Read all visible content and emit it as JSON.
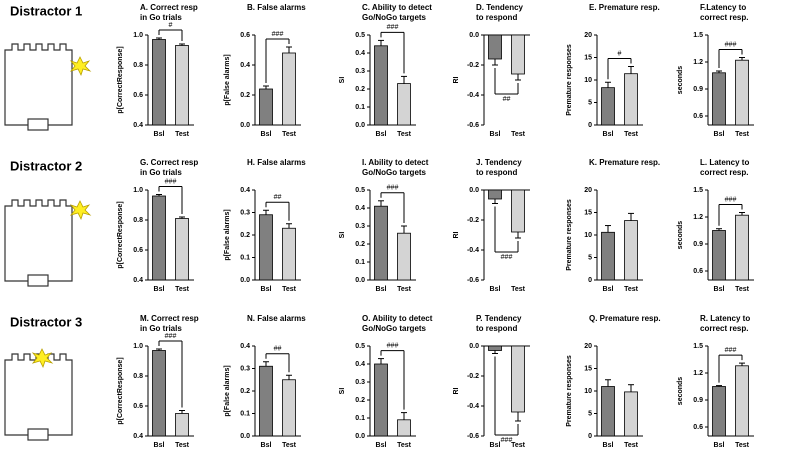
{
  "rows": [
    "Distractor 1",
    "Distractor 2",
    "Distractor 3"
  ],
  "chart_data": [
    {
      "type": "bar",
      "title": [
        "A. Correct resp",
        "in Go trials"
      ],
      "ylabel": "p[CorrectResponse]",
      "categories": [
        "Bsl",
        "Test"
      ],
      "values": [
        0.97,
        0.93
      ],
      "errors": [
        0.01,
        0.01
      ],
      "colors": [
        "#808080",
        "#d4d4d4"
      ],
      "ylim": [
        0.4,
        1
      ],
      "yticks": [
        0.4,
        0.6,
        0.8,
        {
          "value": 1,
          "label": "1.0"
        }
      ],
      "annotation": "#"
    },
    {
      "type": "bar",
      "title": [
        "B. False alarms"
      ],
      "ylabel": "p[False alarms]",
      "categories": [
        "Bsl",
        "Test"
      ],
      "values": [
        0.24,
        0.48
      ],
      "errors": [
        0.02,
        0.04
      ],
      "colors": [
        "#808080",
        "#d4d4d4"
      ],
      "ylim": [
        0,
        0.6
      ],
      "yticks": [
        {
          "value": 0,
          "label": "0.0"
        },
        0.2,
        0.4,
        0.6
      ],
      "annotation": "###"
    },
    {
      "type": "bar",
      "title": [
        "C. Ability to detect",
        "Go/NoGo targets"
      ],
      "ylabel": "SI",
      "categories": [
        "Bsl",
        "Test"
      ],
      "values": [
        0.44,
        0.23
      ],
      "errors": [
        0.03,
        0.04
      ],
      "colors": [
        "#808080",
        "#d4d4d4"
      ],
      "ylim": [
        0,
        0.5
      ],
      "yticks": [
        {
          "value": 0,
          "label": "0.0"
        },
        0.1,
        0.2,
        0.3,
        0.4,
        0.5
      ],
      "annotation": "###"
    },
    {
      "type": "bar",
      "title": [
        "D. Tendency",
        "to respond"
      ],
      "ylabel": "RI",
      "categories": [
        "Bsl",
        "Test"
      ],
      "values": [
        -0.16,
        -0.26
      ],
      "errors": [
        0.04,
        0.04
      ],
      "colors": [
        "#808080",
        "#d4d4d4"
      ],
      "ylim": [
        -0.6,
        0
      ],
      "yticks": [
        -0.6,
        -0.4,
        -0.2,
        {
          "value": 0,
          "label": "0.0"
        }
      ],
      "annotation": "##"
    },
    {
      "type": "bar",
      "title": [
        "E. Premature resp."
      ],
      "ylabel": "Premature responses",
      "categories": [
        "Bsl",
        "Test"
      ],
      "values": [
        8.3,
        11.4
      ],
      "errors": [
        1.2,
        1.6
      ],
      "colors": [
        "#808080",
        "#d4d4d4"
      ],
      "ylim": [
        0,
        20
      ],
      "yticks": [
        0,
        5,
        10,
        15,
        20
      ],
      "annotation": "#"
    },
    {
      "type": "bar",
      "title": [
        "F.Latency to",
        "correct resp."
      ],
      "ylabel": "seconds",
      "categories": [
        "Bsl",
        "Test"
      ],
      "values": [
        1.08,
        1.22
      ],
      "errors": [
        0.02,
        0.03
      ],
      "colors": [
        "#808080",
        "#d4d4d4"
      ],
      "ylim": [
        0.5,
        1.5
      ],
      "yticks": [
        0.6,
        0.9,
        1.2,
        1.5
      ],
      "annotation": "###"
    },
    {
      "type": "bar",
      "title": [
        "G. Correct resp",
        "in Go trials"
      ],
      "ylabel": "p[CorrectResponse]",
      "categories": [
        "Bsl",
        "Test"
      ],
      "values": [
        0.96,
        0.81
      ],
      "errors": [
        0.01,
        0.01
      ],
      "colors": [
        "#808080",
        "#d4d4d4"
      ],
      "ylim": [
        0.4,
        1
      ],
      "yticks": [
        0.4,
        0.6,
        0.8,
        {
          "value": 1,
          "label": "1.0"
        }
      ],
      "annotation": "###"
    },
    {
      "type": "bar",
      "title": [
        "H. False alarms"
      ],
      "ylabel": "p[False alarms]",
      "categories": [
        "Bsl",
        "Test"
      ],
      "values": [
        0.29,
        0.23
      ],
      "errors": [
        0.02,
        0.02
      ],
      "colors": [
        "#808080",
        "#d4d4d4"
      ],
      "ylim": [
        0,
        0.4
      ],
      "yticks": [
        {
          "value": 0,
          "label": "0.0"
        },
        0.1,
        0.2,
        0.3,
        0.4
      ],
      "annotation": "##"
    },
    {
      "type": "bar",
      "title": [
        "I. Ability to detect",
        "Go/NoGo targets"
      ],
      "ylabel": "SI",
      "categories": [
        "Bsl",
        "Test"
      ],
      "values": [
        0.41,
        0.26
      ],
      "errors": [
        0.03,
        0.04
      ],
      "colors": [
        "#808080",
        "#d4d4d4"
      ],
      "ylim": [
        0,
        0.5
      ],
      "yticks": [
        {
          "value": 0,
          "label": "0.0"
        },
        0.1,
        0.2,
        0.3,
        0.4,
        0.5
      ],
      "annotation": "###"
    },
    {
      "type": "bar",
      "title": [
        "J. Tendency",
        "to respond"
      ],
      "ylabel": "RI",
      "categories": [
        "Bsl",
        "Test"
      ],
      "values": [
        -0.06,
        -0.28
      ],
      "errors": [
        0.03,
        0.04
      ],
      "colors": [
        "#808080",
        "#d4d4d4"
      ],
      "ylim": [
        -0.6,
        0
      ],
      "yticks": [
        -0.6,
        -0.4,
        -0.2,
        {
          "value": 0,
          "label": "0.0"
        }
      ],
      "annotation": "###"
    },
    {
      "type": "bar",
      "title": [
        "K. Premature resp."
      ],
      "ylabel": "Premature responses",
      "categories": [
        "Bsl",
        "Test"
      ],
      "values": [
        10.6,
        13.2
      ],
      "errors": [
        1.5,
        1.6
      ],
      "colors": [
        "#808080",
        "#d4d4d4"
      ],
      "ylim": [
        0,
        20
      ],
      "yticks": [
        0,
        5,
        10,
        15,
        20
      ]
    },
    {
      "type": "bar",
      "title": [
        "L. Latency to",
        "correct resp."
      ],
      "ylabel": "seconds",
      "categories": [
        "Bsl",
        "Test"
      ],
      "values": [
        1.05,
        1.22
      ],
      "errors": [
        0.02,
        0.03
      ],
      "colors": [
        "#808080",
        "#d4d4d4"
      ],
      "ylim": [
        0.5,
        1.5
      ],
      "yticks": [
        0.6,
        0.9,
        1.2,
        1.5
      ],
      "annotation": "###"
    },
    {
      "type": "bar",
      "title": [
        "M. Correct resp",
        "in Go trials"
      ],
      "ylabel": "p[CorrectResponse]",
      "categories": [
        "Bsl",
        "Test"
      ],
      "values": [
        0.97,
        0.55
      ],
      "errors": [
        0.01,
        0.02
      ],
      "colors": [
        "#808080",
        "#d4d4d4"
      ],
      "ylim": [
        0.4,
        1
      ],
      "yticks": [
        0.4,
        0.6,
        0.8,
        {
          "value": 1,
          "label": "1.0"
        }
      ],
      "annotation": "###"
    },
    {
      "type": "bar",
      "title": [
        "N. False alarms"
      ],
      "ylabel": "p[False alarms]",
      "categories": [
        "Bsl",
        "Test"
      ],
      "values": [
        0.31,
        0.25
      ],
      "errors": [
        0.02,
        0.02
      ],
      "colors": [
        "#808080",
        "#d4d4d4"
      ],
      "ylim": [
        0,
        0.4
      ],
      "yticks": [
        {
          "value": 0,
          "label": "0.0"
        },
        0.1,
        0.2,
        0.3,
        0.4
      ],
      "annotation": "##"
    },
    {
      "type": "bar",
      "title": [
        "O. Ability to detect",
        "Go/NoGo targets"
      ],
      "ylabel": "SI",
      "categories": [
        "Bsl",
        "Test"
      ],
      "values": [
        0.4,
        0.09
      ],
      "errors": [
        0.03,
        0.04
      ],
      "colors": [
        "#808080",
        "#d4d4d4"
      ],
      "ylim": [
        0,
        0.5
      ],
      "yticks": [
        {
          "value": 0,
          "label": "0.0"
        },
        0.1,
        0.2,
        0.3,
        0.4,
        0.5
      ],
      "annotation": "###"
    },
    {
      "type": "bar",
      "title": [
        "P. Tendency",
        "to respond"
      ],
      "ylabel": "RI",
      "categories": [
        "Bsl",
        "Test"
      ],
      "values": [
        -0.03,
        -0.44
      ],
      "errors": [
        0.02,
        0.06
      ],
      "colors": [
        "#808080",
        "#d4d4d4"
      ],
      "ylim": [
        -0.6,
        0
      ],
      "yticks": [
        -0.6,
        -0.4,
        -0.2,
        {
          "value": 0,
          "label": "0.0"
        }
      ],
      "annotation": "###"
    },
    {
      "type": "bar",
      "title": [
        "Q. Premature resp."
      ],
      "ylabel": "Premature responses",
      "categories": [
        "Bsl",
        "Test"
      ],
      "values": [
        11.0,
        9.8
      ],
      "errors": [
        1.5,
        1.6
      ],
      "colors": [
        "#808080",
        "#d4d4d4"
      ],
      "ylim": [
        0,
        20
      ],
      "yticks": [
        0,
        5,
        10,
        15,
        20
      ]
    },
    {
      "type": "bar",
      "title": [
        "R. Latency to",
        "correct resp."
      ],
      "ylabel": "seconds",
      "categories": [
        "Bsl",
        "Test"
      ],
      "values": [
        1.05,
        1.28
      ],
      "errors": [
        0.01,
        0.03
      ],
      "colors": [
        "#808080",
        "#d4d4d4"
      ],
      "ylim": [
        0.5,
        1.5
      ],
      "yticks": [
        0.6,
        0.9,
        1.2,
        1.5
      ],
      "annotation": "###"
    }
  ]
}
